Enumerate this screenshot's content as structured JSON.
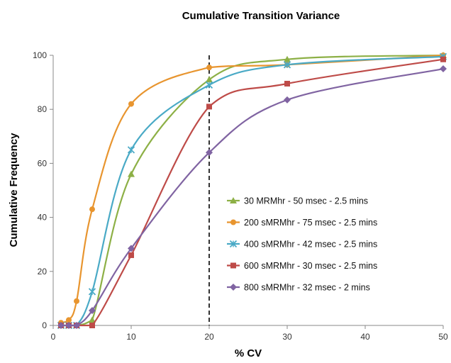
{
  "chart_data": {
    "type": "line",
    "title": "Cumulative Transition Variance",
    "xlabel": "% CV",
    "ylabel": "Cumulative  Frequency",
    "xlim": [
      0,
      50
    ],
    "ylim": [
      0,
      100
    ],
    "xticks": [
      0,
      10,
      20,
      30,
      40,
      50
    ],
    "yticks": [
      0,
      20,
      40,
      60,
      80,
      100
    ],
    "grid": false,
    "legend_position": "lower-right",
    "reference_line": {
      "x": 20,
      "style": "dashed",
      "color": "#333333"
    },
    "series": [
      {
        "name": "30 MRMhr - 50 msec - 2.5 mins",
        "color": "#8db046",
        "marker": "triangle",
        "x": [
          1,
          2,
          3,
          5,
          10,
          20,
          30,
          50
        ],
        "y": [
          0,
          0,
          0,
          2,
          56,
          91,
          98.5,
          100
        ]
      },
      {
        "name": "200 sMRMhr - 75 msec - 2.5 mins",
        "color": "#e8952f",
        "marker": "circle",
        "x": [
          1,
          2,
          3,
          5,
          10,
          20,
          30,
          50
        ],
        "y": [
          1,
          2,
          9,
          43,
          82,
          95.5,
          96.5,
          100
        ]
      },
      {
        "name": "400 sMRMhr - 42 msec - 2.5 mins",
        "color": "#4aaac6",
        "marker": "x",
        "x": [
          1,
          2,
          3,
          5,
          10,
          20,
          30,
          50
        ],
        "y": [
          0,
          0,
          0,
          12.5,
          65,
          89,
          96.5,
          99.5
        ]
      },
      {
        "name": "600 sMRMhr - 30 msec - 2.5 mins",
        "color": "#be4b48",
        "marker": "square",
        "x": [
          1,
          2,
          3,
          5,
          10,
          20,
          30,
          50
        ],
        "y": [
          0,
          0,
          0,
          0,
          26,
          81,
          89.5,
          98.5
        ]
      },
      {
        "name": "800 sMRMhr - 32 msec - 2 mins",
        "color": "#8064a2",
        "marker": "diamond",
        "x": [
          1,
          2,
          3,
          5,
          10,
          20,
          30,
          50
        ],
        "y": [
          0,
          0,
          0,
          5.5,
          28.5,
          64,
          83.5,
          95
        ]
      }
    ]
  }
}
